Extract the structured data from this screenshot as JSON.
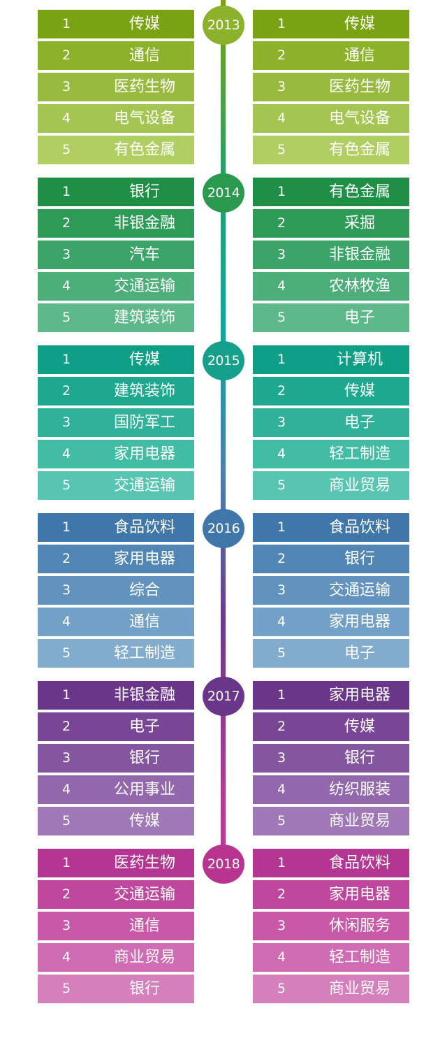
{
  "years": [
    {
      "year": "2013",
      "colors": [
        "#7aa314",
        "#8bb22a",
        "#98bb3f",
        "#a5c552",
        "#b1ce63"
      ],
      "circle_color": "#8bb22a",
      "left": [
        {
          "rank": "1",
          "name": "传媒"
        },
        {
          "rank": "2",
          "name": "通信"
        },
        {
          "rank": "3",
          "name": "医药生物"
        },
        {
          "rank": "4",
          "name": "电气设备"
        },
        {
          "rank": "5",
          "name": "有色金属"
        }
      ],
      "right": [
        {
          "rank": "1",
          "name": "传媒"
        },
        {
          "rank": "2",
          "name": "通信"
        },
        {
          "rank": "3",
          "name": "医药生物"
        },
        {
          "rank": "4",
          "name": "电气设备"
        },
        {
          "rank": "5",
          "name": "有色金属"
        }
      ]
    },
    {
      "year": "2014",
      "colors": [
        "#1f8f45",
        "#2d9a56",
        "#3ca468",
        "#4cae78",
        "#5db989"
      ],
      "circle_color": "#2a9a4e",
      "left": [
        {
          "rank": "1",
          "name": "银行"
        },
        {
          "rank": "2",
          "name": "非银金融"
        },
        {
          "rank": "3",
          "name": "汽车"
        },
        {
          "rank": "4",
          "name": "交通运输"
        },
        {
          "rank": "5",
          "name": "建筑装饰"
        }
      ],
      "right": [
        {
          "rank": "1",
          "name": "有色金属"
        },
        {
          "rank": "2",
          "name": "采掘"
        },
        {
          "rank": "3",
          "name": "非银金融"
        },
        {
          "rank": "4",
          "name": "农林牧渔"
        },
        {
          "rank": "5",
          "name": "电子"
        }
      ]
    },
    {
      "year": "2015",
      "colors": [
        "#0f9e86",
        "#1ea88f",
        "#2fb19a",
        "#43bca6",
        "#57c5b1"
      ],
      "circle_color": "#14a08a",
      "left": [
        {
          "rank": "1",
          "name": "传媒"
        },
        {
          "rank": "2",
          "name": "建筑装饰"
        },
        {
          "rank": "3",
          "name": "国防军工"
        },
        {
          "rank": "4",
          "name": "家用电器"
        },
        {
          "rank": "5",
          "name": "交通运输"
        }
      ],
      "right": [
        {
          "rank": "1",
          "name": "计算机"
        },
        {
          "rank": "2",
          "name": "传媒"
        },
        {
          "rank": "3",
          "name": "电子"
        },
        {
          "rank": "4",
          "name": "轻工制造"
        },
        {
          "rank": "5",
          "name": "商业贸易"
        }
      ]
    },
    {
      "year": "2016",
      "colors": [
        "#3f77aa",
        "#5085b4",
        "#6293be",
        "#72a0c6",
        "#82accd"
      ],
      "circle_color": "#3f77aa",
      "left": [
        {
          "rank": "1",
          "name": "食品饮料"
        },
        {
          "rank": "2",
          "name": "家用电器"
        },
        {
          "rank": "3",
          "name": "综合"
        },
        {
          "rank": "4",
          "name": "通信"
        },
        {
          "rank": "5",
          "name": "轻工制造"
        }
      ],
      "right": [
        {
          "rank": "1",
          "name": "食品饮料"
        },
        {
          "rank": "2",
          "name": "银行"
        },
        {
          "rank": "3",
          "name": "交通运输"
        },
        {
          "rank": "4",
          "name": "家用电器"
        },
        {
          "rank": "5",
          "name": "电子"
        }
      ]
    },
    {
      "year": "2017",
      "colors": [
        "#6a3689",
        "#784695",
        "#8556a0",
        "#9267ac",
        "#a078b7"
      ],
      "circle_color": "#6a3689",
      "left": [
        {
          "rank": "1",
          "name": "非银金融"
        },
        {
          "rank": "2",
          "name": "电子"
        },
        {
          "rank": "3",
          "name": "银行"
        },
        {
          "rank": "4",
          "name": "公用事业"
        },
        {
          "rank": "5",
          "name": "传媒"
        }
      ],
      "right": [
        {
          "rank": "1",
          "name": "家用电器"
        },
        {
          "rank": "2",
          "name": "传媒"
        },
        {
          "rank": "3",
          "name": "银行"
        },
        {
          "rank": "4",
          "name": "纺织服装"
        },
        {
          "rank": "5",
          "name": "商业贸易"
        }
      ]
    },
    {
      "year": "2018",
      "colors": [
        "#b53592",
        "#bf479d",
        "#c759a8",
        "#cf6cb3",
        "#d67fbd"
      ],
      "circle_color": "#b8358f",
      "left": [
        {
          "rank": "1",
          "name": "医药生物"
        },
        {
          "rank": "2",
          "name": "交通运输"
        },
        {
          "rank": "3",
          "name": "通信"
        },
        {
          "rank": "4",
          "name": "商业贸易"
        },
        {
          "rank": "5",
          "name": "银行"
        }
      ],
      "right": [
        {
          "rank": "1",
          "name": "食品饮料"
        },
        {
          "rank": "2",
          "name": "家用电器"
        },
        {
          "rank": "3",
          "name": "休闲服务"
        },
        {
          "rank": "4",
          "name": "轻工制造"
        },
        {
          "rank": "5",
          "name": "商业贸易"
        }
      ]
    }
  ]
}
